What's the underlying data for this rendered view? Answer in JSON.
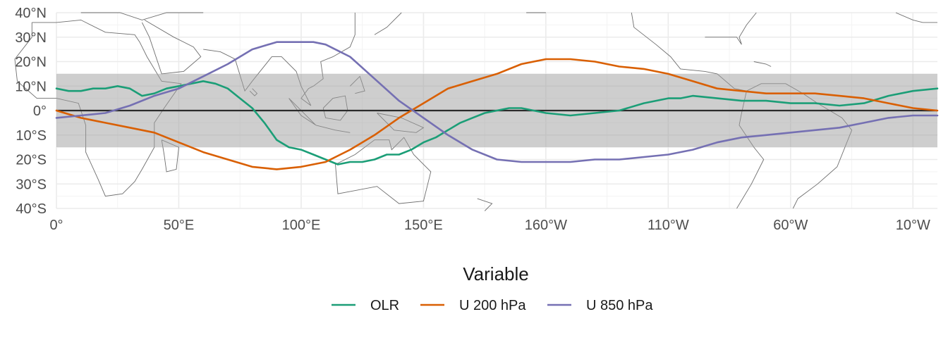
{
  "chart_data": {
    "type": "line",
    "background": "world-map-outline",
    "x_ticks": [
      "0°",
      "50°E",
      "100°E",
      "150°E",
      "160°W",
      "110°W",
      "60°W",
      "10°W"
    ],
    "y_ticks": [
      "40°N",
      "30°N",
      "20°N",
      "10°N",
      "0°",
      "10°S",
      "20°S",
      "30°S",
      "40°S"
    ],
    "xlim": [
      0,
      360
    ],
    "ylim": [
      -40,
      40
    ],
    "shaded_band": [
      -15,
      15
    ],
    "zero_line": 0,
    "grid": true,
    "legend": {
      "title": "Variable",
      "position": "bottom"
    },
    "series": [
      {
        "name": "OLR",
        "color": "#1b9e77",
        "x": [
          0,
          5,
          10,
          15,
          20,
          25,
          30,
          35,
          40,
          45,
          50,
          55,
          60,
          65,
          70,
          75,
          80,
          85,
          90,
          95,
          100,
          105,
          110,
          115,
          120,
          125,
          130,
          135,
          140,
          145,
          150,
          155,
          160,
          165,
          170,
          175,
          180,
          185,
          190,
          195,
          200,
          210,
          220,
          230,
          240,
          250,
          255,
          260,
          270,
          280,
          290,
          300,
          310,
          320,
          330,
          340,
          350,
          360
        ],
        "y": [
          9,
          8,
          8,
          9,
          9,
          10,
          9,
          6,
          7,
          9,
          10,
          11,
          12,
          11,
          9,
          5,
          1,
          -5,
          -12,
          -15,
          -16,
          -18,
          -20,
          -22,
          -21,
          -21,
          -20,
          -18,
          -18,
          -16,
          -13,
          -11,
          -8,
          -5,
          -3,
          -1,
          0,
          1,
          1,
          0,
          -1,
          -2,
          -1,
          0,
          3,
          5,
          5,
          6,
          5,
          4,
          4,
          3,
          3,
          2,
          3,
          6,
          8,
          9
        ]
      },
      {
        "name": "U 200 hPa",
        "color": "#d95f02",
        "x": [
          0,
          10,
          20,
          30,
          40,
          50,
          60,
          70,
          80,
          90,
          100,
          110,
          120,
          130,
          140,
          150,
          160,
          170,
          180,
          190,
          200,
          210,
          220,
          230,
          240,
          250,
          260,
          270,
          280,
          290,
          300,
          310,
          320,
          330,
          340,
          350,
          360
        ],
        "y": [
          0,
          -3,
          -5,
          -7,
          -9,
          -13,
          -17,
          -20,
          -23,
          -24,
          -23,
          -21,
          -16,
          -10,
          -3,
          3,
          9,
          12,
          15,
          19,
          21,
          21,
          20,
          18,
          17,
          15,
          12,
          9,
          8,
          7,
          7,
          7,
          6,
          5,
          3,
          1,
          0
        ]
      },
      {
        "name": "U 850 hPa",
        "color": "#7570b3",
        "x": [
          0,
          10,
          20,
          30,
          40,
          50,
          60,
          70,
          80,
          90,
          100,
          105,
          110,
          120,
          130,
          140,
          150,
          160,
          170,
          180,
          190,
          200,
          210,
          220,
          230,
          240,
          250,
          260,
          270,
          280,
          290,
          300,
          310,
          320,
          330,
          340,
          350,
          360
        ],
        "y": [
          -3,
          -2,
          -1,
          2,
          6,
          9,
          14,
          19,
          25,
          28,
          28,
          28,
          27,
          22,
          13,
          4,
          -3,
          -10,
          -16,
          -20,
          -21,
          -21,
          -21,
          -20,
          -20,
          -19,
          -18,
          -16,
          -13,
          -11,
          -10,
          -9,
          -8,
          -7,
          -5,
          -3,
          -2,
          -2
        ]
      }
    ]
  }
}
